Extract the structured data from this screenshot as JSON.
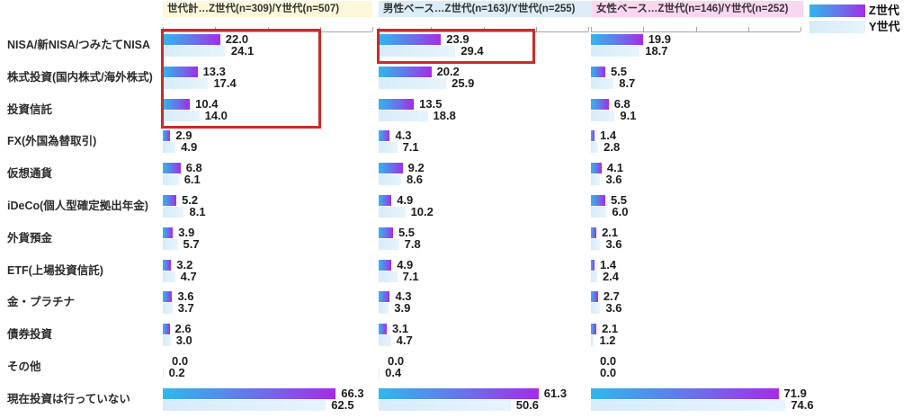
{
  "colors": {
    "z_gradient_start": "#31b7ec",
    "z_gradient_end": "#a42ce7",
    "y_bar": "#d6ecf9",
    "header_backgrounds": [
      "#fcf8d9",
      "#dcedf8",
      "#fbd6f1"
    ],
    "highlight_box": "#c92b2b",
    "axis": "#a6a6a6",
    "text": "#1c1c1c"
  },
  "legend": {
    "items": [
      {
        "label": "Z世代",
        "swatch": "z-gradient"
      },
      {
        "label": "Y世代",
        "swatch": "y-light-blue"
      }
    ]
  },
  "chart_data": {
    "type": "bar",
    "orientation": "horizontal",
    "grid": false,
    "legend": [
      "Z世代",
      "Y世代"
    ],
    "legend_position": "top-right",
    "value_axis": {
      "min": 0,
      "max": 80,
      "ticks": [
        0,
        20,
        40,
        60,
        80
      ],
      "ticks_visible_labels": false
    },
    "categories": [
      "NISA/新NISA/つみたてNISA",
      "株式投資(国内株式/海外株式)",
      "投資信託",
      "FX(外国為替取引)",
      "仮想通貨",
      "iDeCo(個人型確定拠出年金)",
      "外貨預金",
      "ETF(上場投資信託)",
      "金・プラチナ",
      "債券投資",
      "その他",
      "現在投資は行っていない"
    ],
    "panels": [
      {
        "header": "世代計…Z世代(n=309)/Y世代(n=507)",
        "series": [
          {
            "name": "Z世代",
            "values": [
              22.0,
              13.3,
              10.4,
              2.9,
              6.8,
              5.2,
              3.9,
              3.2,
              3.6,
              2.6,
              0.0,
              66.3
            ]
          },
          {
            "name": "Y世代",
            "values": [
              24.1,
              17.4,
              14.0,
              4.9,
              6.1,
              8.1,
              5.7,
              4.7,
              3.7,
              3.0,
              0.2,
              62.5
            ]
          }
        ]
      },
      {
        "header": "男性ベース…Z世代(n=163)/Y世代(n=255)",
        "series": [
          {
            "name": "Z世代",
            "values": [
              23.9,
              20.2,
              13.5,
              4.3,
              9.2,
              4.9,
              5.5,
              4.9,
              4.3,
              3.1,
              0.0,
              61.3
            ]
          },
          {
            "name": "Y世代",
            "values": [
              29.4,
              25.9,
              18.8,
              7.1,
              8.6,
              10.2,
              7.8,
              7.1,
              3.9,
              4.7,
              0.4,
              50.6
            ]
          }
        ]
      },
      {
        "header": "女性ベース…Z世代(n=146)/Y世代(n=252)",
        "series": [
          {
            "name": "Z世代",
            "values": [
              19.9,
              5.5,
              6.8,
              1.4,
              4.1,
              5.5,
              2.1,
              1.4,
              2.7,
              2.1,
              0.0,
              71.9
            ]
          },
          {
            "name": "Y世代",
            "values": [
              18.7,
              8.7,
              9.1,
              2.8,
              3.6,
              6.0,
              3.6,
              2.4,
              3.6,
              1.2,
              0.0,
              74.6
            ]
          }
        ]
      }
    ],
    "annotations": [
      {
        "type": "highlight-box",
        "panel": 0,
        "row_start": 0,
        "row_end": 2
      },
      {
        "type": "highlight-box",
        "panel": 1,
        "row_start": 0,
        "row_end": 0
      }
    ]
  }
}
